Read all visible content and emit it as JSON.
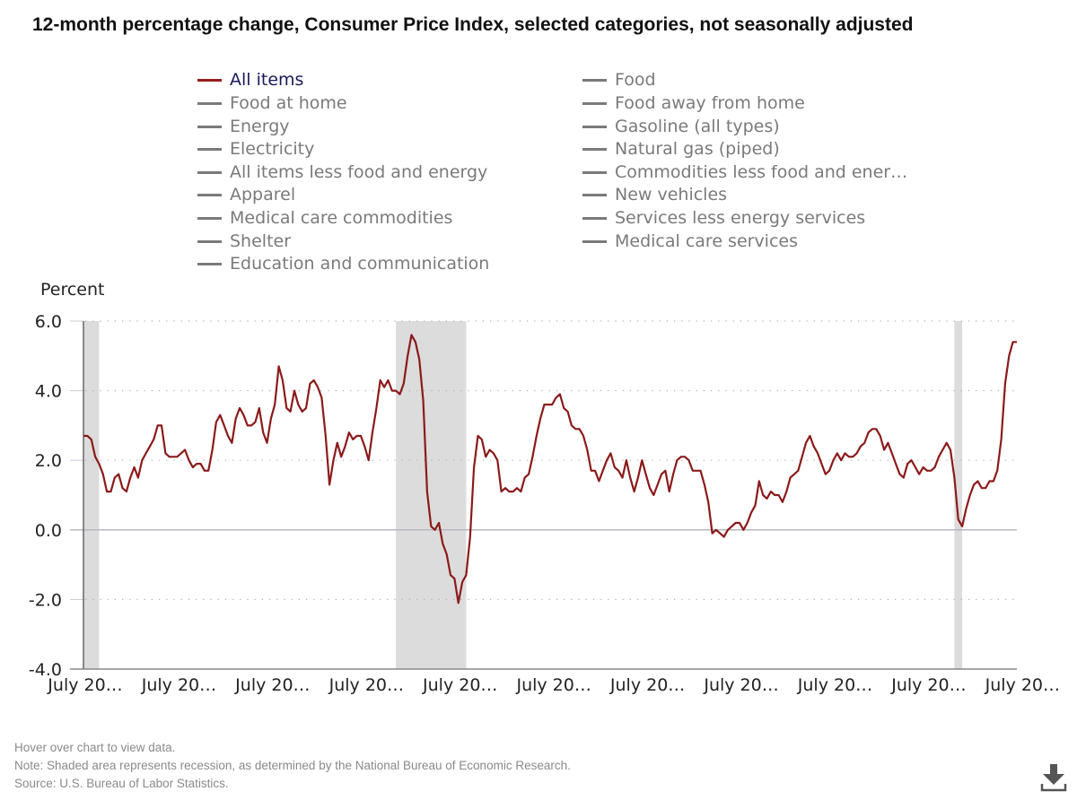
{
  "title": "12-month percentage change, Consumer Price Index, selected categories, not seasonally adjusted",
  "legend": {
    "left_column": [
      {
        "label": "All items",
        "active": true
      },
      {
        "label": "Food at home",
        "active": false
      },
      {
        "label": "Energy",
        "active": false
      },
      {
        "label": "Electricity",
        "active": false
      },
      {
        "label": "All items less food and energy",
        "active": false
      },
      {
        "label": "Apparel",
        "active": false
      },
      {
        "label": "Medical care commodities",
        "active": false
      },
      {
        "label": "Shelter",
        "active": false
      },
      {
        "label": "Education and communication",
        "active": false
      }
    ],
    "right_column": [
      {
        "label": "Food",
        "active": false
      },
      {
        "label": "Food away from home",
        "active": false
      },
      {
        "label": "Gasoline (all types)",
        "active": false
      },
      {
        "label": "Natural gas (piped)",
        "active": false
      },
      {
        "label": "Commodities less food and ener…",
        "active": false
      },
      {
        "label": "New vehicles",
        "active": false
      },
      {
        "label": "Services less energy services",
        "active": false
      },
      {
        "label": "Medical care services",
        "active": false
      }
    ]
  },
  "footer": {
    "hover_hint": "Hover over chart to view data.",
    "note": "Note: Shaded area represents recession, as determined by the National Bureau of Economic Research.",
    "source": "Source: U.S. Bureau of Labor Statistics."
  },
  "icons": {
    "download": "download-icon"
  },
  "colors": {
    "series": "#8b1a1a",
    "recession": "#dcdcdc",
    "inactive_legend": "#7a7a7a",
    "active_legend_text": "#1a1a5e"
  },
  "chart_data": {
    "type": "line",
    "title": "12-month percentage change, Consumer Price Index, selected categories, not seasonally adjusted",
    "ylabel": "Percent",
    "xlabel": "",
    "ylim": [
      -4.0,
      6.0
    ],
    "yticks": [
      "6.0",
      "4.0",
      "2.0",
      "0.0",
      "-2.0",
      "-4.0"
    ],
    "ytick_values": [
      6,
      4,
      2,
      0,
      -2,
      -4
    ],
    "grid": "horizontal dotted",
    "legend_position": "top",
    "x_start": "July 2001",
    "x_end": "June 2021",
    "x_frequency": "monthly",
    "xtick_labels": [
      "July 20…",
      "July 20…",
      "July 20…",
      "July 20…",
      "July 20…",
      "July 20…",
      "July 20…",
      "July 20…",
      "July 20…",
      "July 20…",
      "July 20…"
    ],
    "xtick_month_index": [
      0,
      24,
      48,
      72,
      96,
      120,
      144,
      168,
      192,
      216,
      240
    ],
    "recessions": [
      {
        "start_index": 0,
        "end_index": 4,
        "label": "2001 recession"
      },
      {
        "start_index": 80,
        "end_index": 98,
        "label": "2007-2009 recession"
      },
      {
        "start_index": 223,
        "end_index": 225,
        "label": "2020 recession"
      }
    ],
    "series": [
      {
        "name": "All items",
        "values": [
          2.7,
          2.7,
          2.6,
          2.1,
          1.9,
          1.6,
          1.1,
          1.1,
          1.5,
          1.6,
          1.2,
          1.1,
          1.5,
          1.8,
          1.5,
          2.0,
          2.2,
          2.4,
          2.6,
          3.0,
          3.0,
          2.2,
          2.1,
          2.1,
          2.1,
          2.2,
          2.3,
          2.0,
          1.8,
          1.9,
          1.9,
          1.7,
          1.7,
          2.3,
          3.1,
          3.3,
          3.0,
          2.7,
          2.5,
          3.2,
          3.5,
          3.3,
          3.0,
          3.0,
          3.1,
          3.5,
          2.8,
          2.5,
          3.2,
          3.6,
          4.7,
          4.3,
          3.5,
          3.4,
          4.0,
          3.6,
          3.4,
          3.5,
          4.2,
          4.3,
          4.1,
          3.8,
          2.7,
          1.3,
          2.0,
          2.5,
          2.1,
          2.4,
          2.8,
          2.6,
          2.7,
          2.7,
          2.4,
          2.0,
          2.8,
          3.5,
          4.3,
          4.1,
          4.3,
          4.0,
          4.0,
          3.9,
          4.2,
          5.0,
          5.6,
          5.4,
          4.9,
          3.7,
          1.1,
          0.1,
          0.0,
          0.2,
          -0.4,
          -0.7,
          -1.3,
          -1.4,
          -2.1,
          -1.5,
          -1.3,
          -0.2,
          1.8,
          2.7,
          2.6,
          2.1,
          2.3,
          2.2,
          2.0,
          1.1,
          1.2,
          1.1,
          1.1,
          1.2,
          1.1,
          1.5,
          1.6,
          2.1,
          2.7,
          3.2,
          3.6,
          3.6,
          3.6,
          3.8,
          3.9,
          3.5,
          3.4,
          3.0,
          2.9,
          2.9,
          2.7,
          2.3,
          1.7,
          1.7,
          1.4,
          1.7,
          2.0,
          2.2,
          1.8,
          1.7,
          1.5,
          2.0,
          1.5,
          1.1,
          1.5,
          2.0,
          1.6,
          1.2,
          1.0,
          1.3,
          1.6,
          1.7,
          1.1,
          1.6,
          2.0,
          2.1,
          2.1,
          2.0,
          1.7,
          1.7,
          1.7,
          1.3,
          0.8,
          -0.1,
          0.0,
          -0.1,
          -0.2,
          0.0,
          0.1,
          0.2,
          0.2,
          0.0,
          0.2,
          0.5,
          0.7,
          1.4,
          1.0,
          0.9,
          1.1,
          1.0,
          1.0,
          0.8,
          1.1,
          1.5,
          1.6,
          1.7,
          2.1,
          2.5,
          2.7,
          2.4,
          2.2,
          1.9,
          1.6,
          1.7,
          2.0,
          2.2,
          2.0,
          2.2,
          2.1,
          2.1,
          2.2,
          2.4,
          2.5,
          2.8,
          2.9,
          2.9,
          2.7,
          2.3,
          2.5,
          2.2,
          1.9,
          1.6,
          1.5,
          1.9,
          2.0,
          1.8,
          1.6,
          1.8,
          1.7,
          1.7,
          1.8,
          2.1,
          2.3,
          2.5,
          2.3,
          1.5,
          0.3,
          0.1,
          0.6,
          1.0,
          1.3,
          1.4,
          1.2,
          1.2,
          1.4,
          1.4,
          1.7,
          2.6,
          4.2,
          5.0,
          5.4,
          5.4
        ]
      }
    ]
  }
}
